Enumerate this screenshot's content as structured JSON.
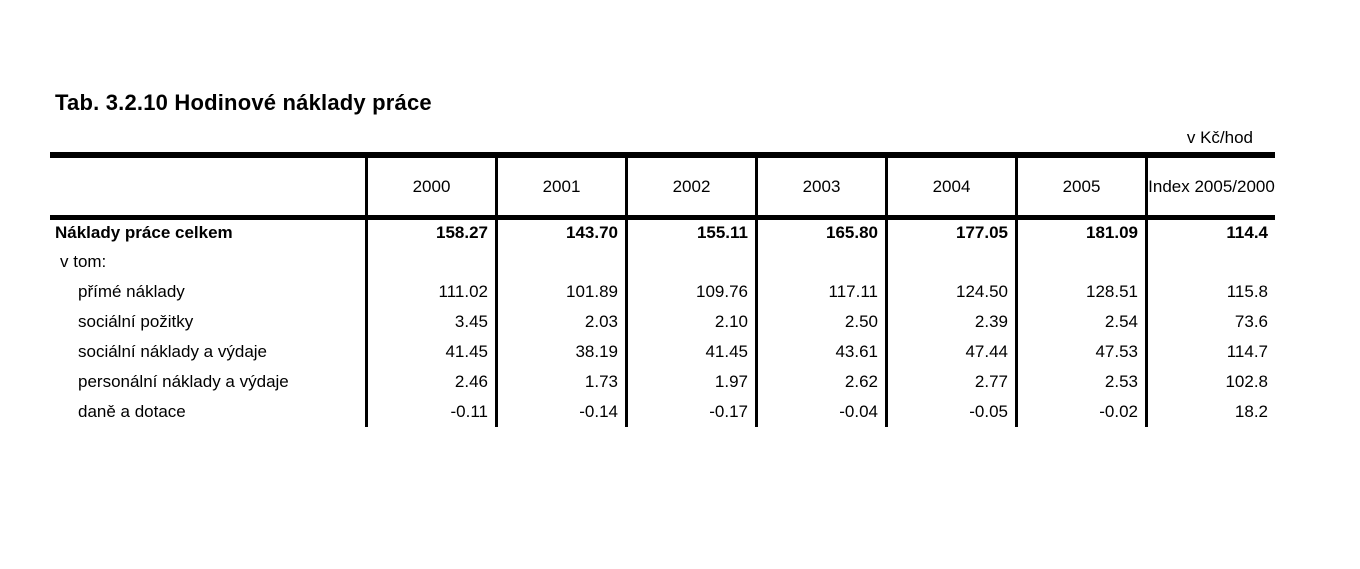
{
  "title": "Tab. 3.2.10 Hodinové náklady práce",
  "unit_label": "v Kč/hod",
  "table": {
    "columns": [
      "",
      "2000",
      "2001",
      "2002",
      "2003",
      "2004",
      "2005",
      "Index 2005/2000"
    ],
    "rows": [
      {
        "label": "Náklady práce celkem",
        "bold": true,
        "indent": 0,
        "values": [
          "158.27",
          "143.70",
          "155.11",
          "165.80",
          "177.05",
          "181.09",
          "114.4"
        ]
      },
      {
        "label": "v tom:",
        "bold": false,
        "indent": 1,
        "values": [
          "",
          "",
          "",
          "",
          "",
          "",
          ""
        ]
      },
      {
        "label": "přímé náklady",
        "bold": false,
        "indent": 2,
        "values": [
          "111.02",
          "101.89",
          "109.76",
          "117.11",
          "124.50",
          "128.51",
          "115.8"
        ]
      },
      {
        "label": "sociální požitky",
        "bold": false,
        "indent": 2,
        "values": [
          "3.45",
          "2.03",
          "2.10",
          "2.50",
          "2.39",
          "2.54",
          "73.6"
        ]
      },
      {
        "label": "sociální náklady a výdaje",
        "bold": false,
        "indent": 2,
        "values": [
          "41.45",
          "38.19",
          "41.45",
          "43.61",
          "47.44",
          "47.53",
          "114.7"
        ]
      },
      {
        "label": "personální náklady a výdaje",
        "bold": false,
        "indent": 2,
        "values": [
          "2.46",
          "1.73",
          "1.97",
          "2.62",
          "2.77",
          "2.53",
          "102.8"
        ]
      },
      {
        "label": "daně a dotace",
        "bold": false,
        "indent": 2,
        "values": [
          "-0.11",
          "-0.14",
          "-0.17",
          "-0.04",
          "-0.05",
          "-0.02",
          "18.2"
        ]
      }
    ]
  },
  "colors": {
    "text": "#000000",
    "background": "#ffffff",
    "rule": "#000000"
  }
}
